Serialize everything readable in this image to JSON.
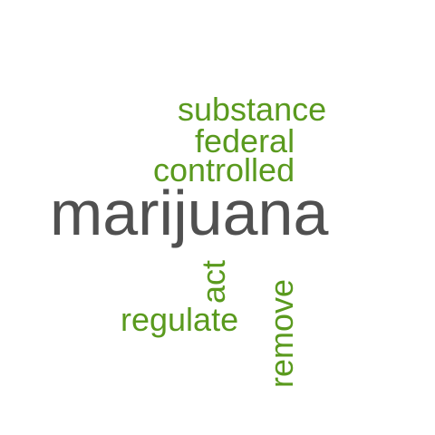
{
  "colors": {
    "primary_word": "#505050",
    "secondary_words": "#5a9a1e",
    "background": "#ffffff"
  },
  "words": {
    "marijuana": "marijuana",
    "substance": "substance",
    "federal": "federal",
    "controlled": "controlled",
    "regulate": "regulate",
    "act": "act",
    "remove": "remove"
  }
}
